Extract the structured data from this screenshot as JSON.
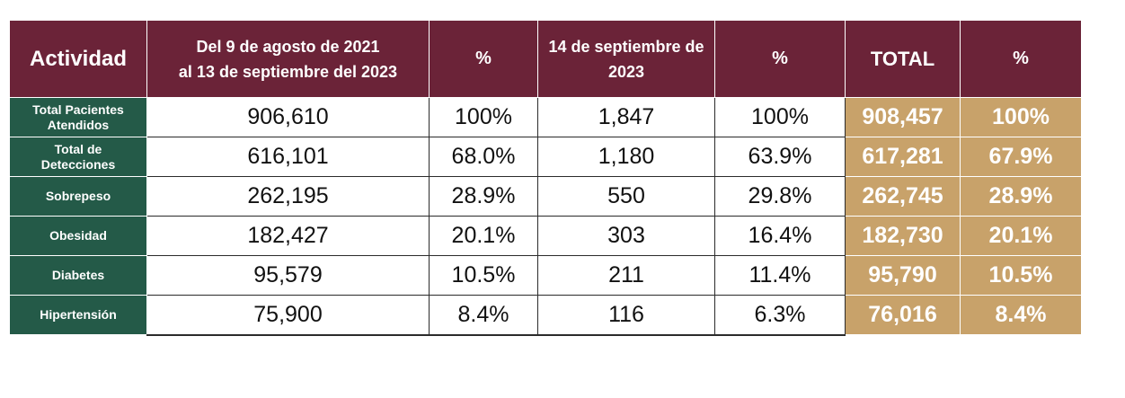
{
  "table": {
    "headers": {
      "actividad": "Actividad",
      "period1_line1": "Del 9 de agosto de 2021",
      "period1_line2": "al 13 de septiembre del 2023",
      "pct1": "%",
      "period2_line1": "14 de septiembre de",
      "period2_line2": "2023",
      "pct2": "%",
      "total": "TOTAL",
      "pct3": "%"
    },
    "rows": [
      {
        "label_line1": "Total Pacientes",
        "label_line2": "Atendidos",
        "p1": "906,610",
        "p1_pct": "100%",
        "p2": "1,847",
        "p2_pct": "100%",
        "total": "908,457",
        "total_pct": "100%"
      },
      {
        "label_line1": "Total de",
        "label_line2": "Detecciones",
        "p1": "616,101",
        "p1_pct": "68.0%",
        "p2": "1,180",
        "p2_pct": "63.9%",
        "total": "617,281",
        "total_pct": "67.9%"
      },
      {
        "label_line1": "Sobrepeso",
        "label_line2": "",
        "p1": "262,195",
        "p1_pct": "28.9%",
        "p2": "550",
        "p2_pct": "29.8%",
        "total": "262,745",
        "total_pct": "28.9%"
      },
      {
        "label_line1": "Obesidad",
        "label_line2": "",
        "p1": "182,427",
        "p1_pct": "20.1%",
        "p2": "303",
        "p2_pct": "16.4%",
        "total": "182,730",
        "total_pct": "20.1%"
      },
      {
        "label_line1": "Diabetes",
        "label_line2": "",
        "p1": "95,579",
        "p1_pct": "10.5%",
        "p2": "211",
        "p2_pct": "11.4%",
        "total": "95,790",
        "total_pct": "10.5%"
      },
      {
        "label_line1": "Hipertensión",
        "label_line2": "",
        "p1": "75,900",
        "p1_pct": "8.4%",
        "p2": "116",
        "p2_pct": "6.3%",
        "total": "76,016",
        "total_pct": "8.4%"
      }
    ]
  },
  "colors": {
    "header_bg": "#6b2338",
    "label_bg": "#245a48",
    "total_bg": "#c8a26a"
  }
}
